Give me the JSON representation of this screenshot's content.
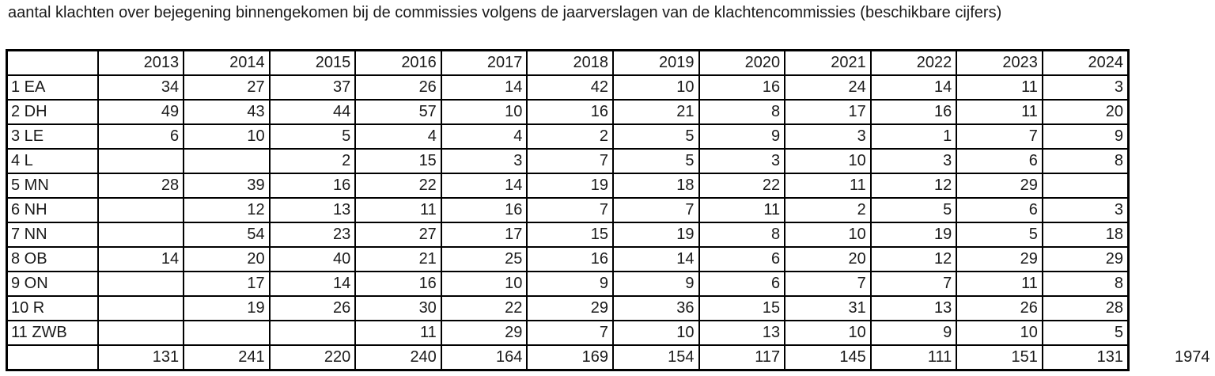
{
  "title": "aantal klachten over bejegening binnengekomen bij de commissies volgens de jaarverslagen van de klachtencommissies (beschikbare cijfers)",
  "table": {
    "corner_label": "",
    "years": [
      "2013",
      "2014",
      "2015",
      "2016",
      "2017",
      "2018",
      "2019",
      "2020",
      "2021",
      "2022",
      "2023",
      "2024"
    ],
    "rows": [
      {
        "label": "1 EA",
        "values": [
          "34",
          "27",
          "37",
          "26",
          "14",
          "42",
          "10",
          "16",
          "24",
          "14",
          "11",
          "3"
        ]
      },
      {
        "label": "2 DH",
        "values": [
          "49",
          "43",
          "44",
          "57",
          "10",
          "16",
          "21",
          "8",
          "17",
          "16",
          "11",
          "20"
        ]
      },
      {
        "label": "3 LE",
        "values": [
          "6",
          "10",
          "5",
          "4",
          "4",
          "2",
          "5",
          "9",
          "3",
          "1",
          "7",
          "9"
        ]
      },
      {
        "label": "4 L",
        "values": [
          "",
          "",
          "2",
          "15",
          "3",
          "7",
          "5",
          "3",
          "10",
          "3",
          "6",
          "8"
        ]
      },
      {
        "label": "5 MN",
        "values": [
          "28",
          "39",
          "16",
          "22",
          "14",
          "19",
          "18",
          "22",
          "11",
          "12",
          "29",
          ""
        ]
      },
      {
        "label": "6 NH",
        "values": [
          "",
          "12",
          "13",
          "11",
          "16",
          "7",
          "7",
          "11",
          "2",
          "5",
          "6",
          "3"
        ]
      },
      {
        "label": "7 NN",
        "values": [
          "",
          "54",
          "23",
          "27",
          "17",
          "15",
          "19",
          "8",
          "10",
          "19",
          "5",
          "18"
        ]
      },
      {
        "label": "8 OB",
        "values": [
          "14",
          "20",
          "40",
          "21",
          "25",
          "16",
          "14",
          "6",
          "20",
          "12",
          "29",
          "29"
        ]
      },
      {
        "label": "9 ON",
        "values": [
          "",
          "17",
          "14",
          "16",
          "10",
          "9",
          "9",
          "6",
          "7",
          "7",
          "11",
          "8"
        ]
      },
      {
        "label": "10 R",
        "values": [
          "",
          "19",
          "26",
          "30",
          "22",
          "29",
          "36",
          "15",
          "31",
          "13",
          "26",
          "28"
        ]
      },
      {
        "label": "11 ZWB",
        "values": [
          "",
          "",
          "",
          "11",
          "29",
          "7",
          "10",
          "13",
          "10",
          "9",
          "10",
          "5"
        ]
      }
    ],
    "totals_label": "",
    "totals": [
      "131",
      "241",
      "220",
      "240",
      "164",
      "169",
      "154",
      "117",
      "145",
      "111",
      "151",
      "131"
    ],
    "grand_total": "1974"
  }
}
